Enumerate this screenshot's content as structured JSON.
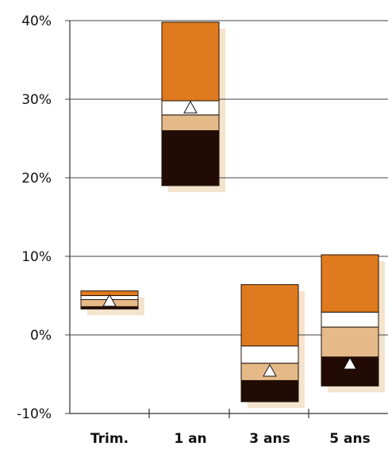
{
  "chart_data": {
    "type": "bar",
    "subtype": "floating-stacked-range",
    "categories": [
      "Trim.",
      "1 an",
      "3 ans",
      "5 ans"
    ],
    "y_ticks": [
      "40%",
      "30%",
      "20%",
      "10%",
      "0%",
      "-10%"
    ],
    "ylim": [
      -10,
      40
    ],
    "grid": true,
    "legend": "none",
    "bands": [
      {
        "low": 3.3,
        "q1": 3.6,
        "median": 4.5,
        "q3": 5.0,
        "high": 5.6
      },
      {
        "low": 19.0,
        "q1": 26.0,
        "median": 28.0,
        "q3": 29.8,
        "high": 39.8
      },
      {
        "low": -8.5,
        "q1": -5.8,
        "median": -3.6,
        "q3": -1.4,
        "high": 6.4
      },
      {
        "low": -6.5,
        "q1": -2.8,
        "median": 1.0,
        "q3": 2.9,
        "high": 10.2
      }
    ],
    "markers": [
      4.3,
      28.9,
      -4.6,
      -3.7
    ],
    "colors": {
      "bottom_band": "#220b04",
      "lower_mid_band": "#e6b989",
      "upper_mid_band": "#ffffff",
      "top_band": "#e07a1e",
      "shadow": "#f4e3cd",
      "marker": "#ffffff",
      "grid": "#444444",
      "axis": "#333333"
    }
  }
}
